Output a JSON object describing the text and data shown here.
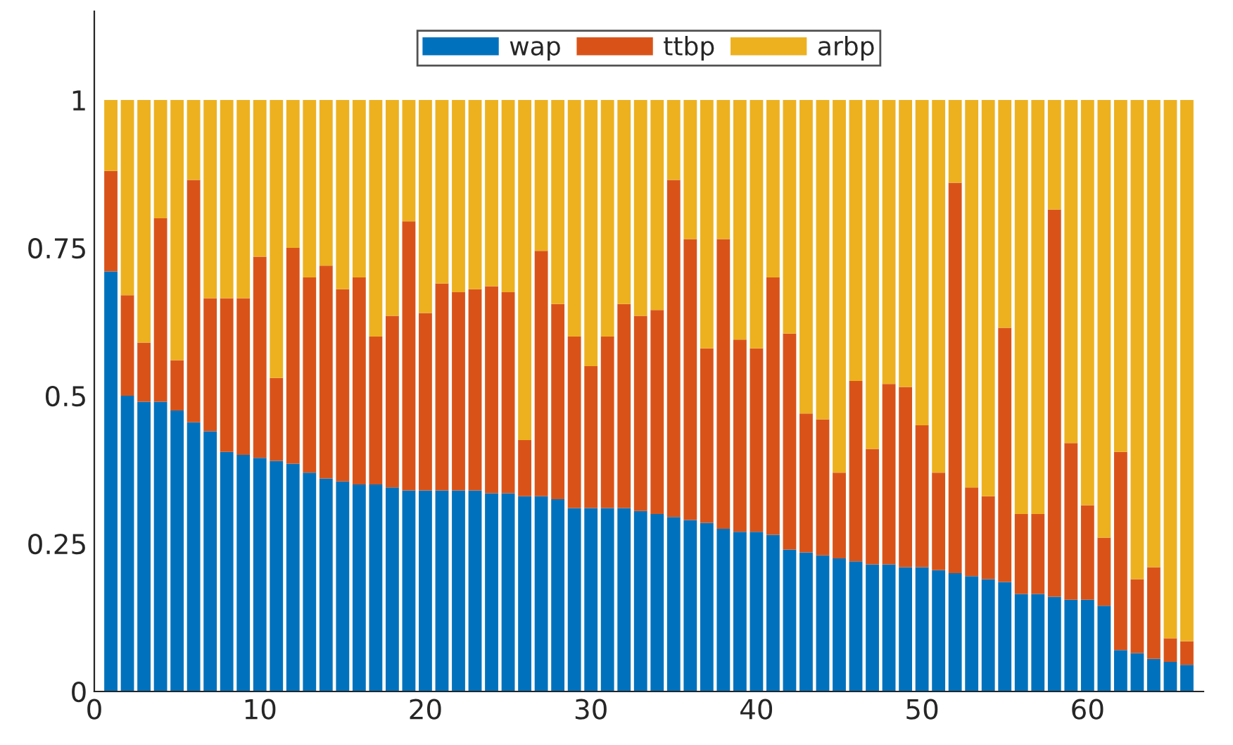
{
  "chart_data": {
    "type": "bar",
    "stacked": true,
    "x": [
      1,
      2,
      3,
      4,
      5,
      6,
      7,
      8,
      9,
      10,
      11,
      12,
      13,
      14,
      15,
      16,
      17,
      18,
      19,
      20,
      21,
      22,
      23,
      24,
      25,
      26,
      27,
      28,
      29,
      30,
      31,
      32,
      33,
      34,
      35,
      36,
      37,
      38,
      39,
      40,
      41,
      42,
      43,
      44,
      45,
      46,
      47,
      48,
      49,
      50,
      51,
      52,
      53,
      54,
      55,
      56,
      57,
      58,
      59,
      60,
      61,
      62,
      63,
      64,
      65,
      66
    ],
    "series": [
      {
        "name": "wap",
        "color": "#0072bd",
        "values": [
          0.71,
          0.5,
          0.49,
          0.49,
          0.475,
          0.455,
          0.44,
          0.405,
          0.4,
          0.395,
          0.39,
          0.385,
          0.37,
          0.36,
          0.355,
          0.35,
          0.35,
          0.345,
          0.34,
          0.34,
          0.34,
          0.34,
          0.34,
          0.335,
          0.335,
          0.33,
          0.33,
          0.325,
          0.31,
          0.31,
          0.31,
          0.31,
          0.305,
          0.3,
          0.295,
          0.29,
          0.285,
          0.275,
          0.27,
          0.27,
          0.265,
          0.24,
          0.235,
          0.23,
          0.225,
          0.22,
          0.215,
          0.215,
          0.21,
          0.21,
          0.205,
          0.2,
          0.195,
          0.19,
          0.185,
          0.165,
          0.165,
          0.16,
          0.155,
          0.155,
          0.145,
          0.07,
          0.065,
          0.055,
          0.05,
          0.045
        ]
      },
      {
        "name": "ttbp",
        "color": "#d95319",
        "values": [
          0.17,
          0.17,
          0.1,
          0.31,
          0.085,
          0.41,
          0.225,
          0.26,
          0.265,
          0.34,
          0.14,
          0.365,
          0.33,
          0.36,
          0.325,
          0.35,
          0.25,
          0.29,
          0.455,
          0.3,
          0.35,
          0.335,
          0.34,
          0.35,
          0.34,
          0.095,
          0.415,
          0.33,
          0.29,
          0.24,
          0.29,
          0.345,
          0.33,
          0.345,
          0.57,
          0.475,
          0.295,
          0.49,
          0.325,
          0.31,
          0.435,
          0.365,
          0.235,
          0.23,
          0.145,
          0.305,
          0.195,
          0.305,
          0.305,
          0.24,
          0.165,
          0.66,
          0.15,
          0.14,
          0.43,
          0.135,
          0.135,
          0.655,
          0.265,
          0.16,
          0.115,
          0.335,
          0.125,
          0.155,
          0.04,
          0.04
        ]
      },
      {
        "name": "arbp",
        "color": "#edb120",
        "values": [
          0.12,
          0.33,
          0.41,
          0.2,
          0.44,
          0.135,
          0.335,
          0.335,
          0.335,
          0.265,
          0.47,
          0.25,
          0.3,
          0.28,
          0.32,
          0.3,
          0.4,
          0.365,
          0.205,
          0.36,
          0.31,
          0.325,
          0.32,
          0.315,
          0.325,
          0.575,
          0.255,
          0.345,
          0.4,
          0.45,
          0.4,
          0.345,
          0.365,
          0.355,
          0.135,
          0.235,
          0.42,
          0.235,
          0.405,
          0.42,
          0.3,
          0.395,
          0.53,
          0.54,
          0.63,
          0.475,
          0.59,
          0.48,
          0.485,
          0.55,
          0.63,
          0.14,
          0.655,
          0.67,
          0.385,
          0.7,
          0.7,
          0.185,
          0.58,
          0.685,
          0.74,
          0.595,
          0.81,
          0.79,
          0.91,
          0.915
        ]
      }
    ],
    "xlim": [
      0,
      67
    ],
    "xticks": [
      0,
      10,
      20,
      30,
      40,
      50,
      60
    ],
    "ylim": [
      0,
      1.15
    ],
    "yticks": [
      0,
      0.25,
      0.5,
      0.75,
      1
    ],
    "grid": false,
    "legend": "top"
  }
}
